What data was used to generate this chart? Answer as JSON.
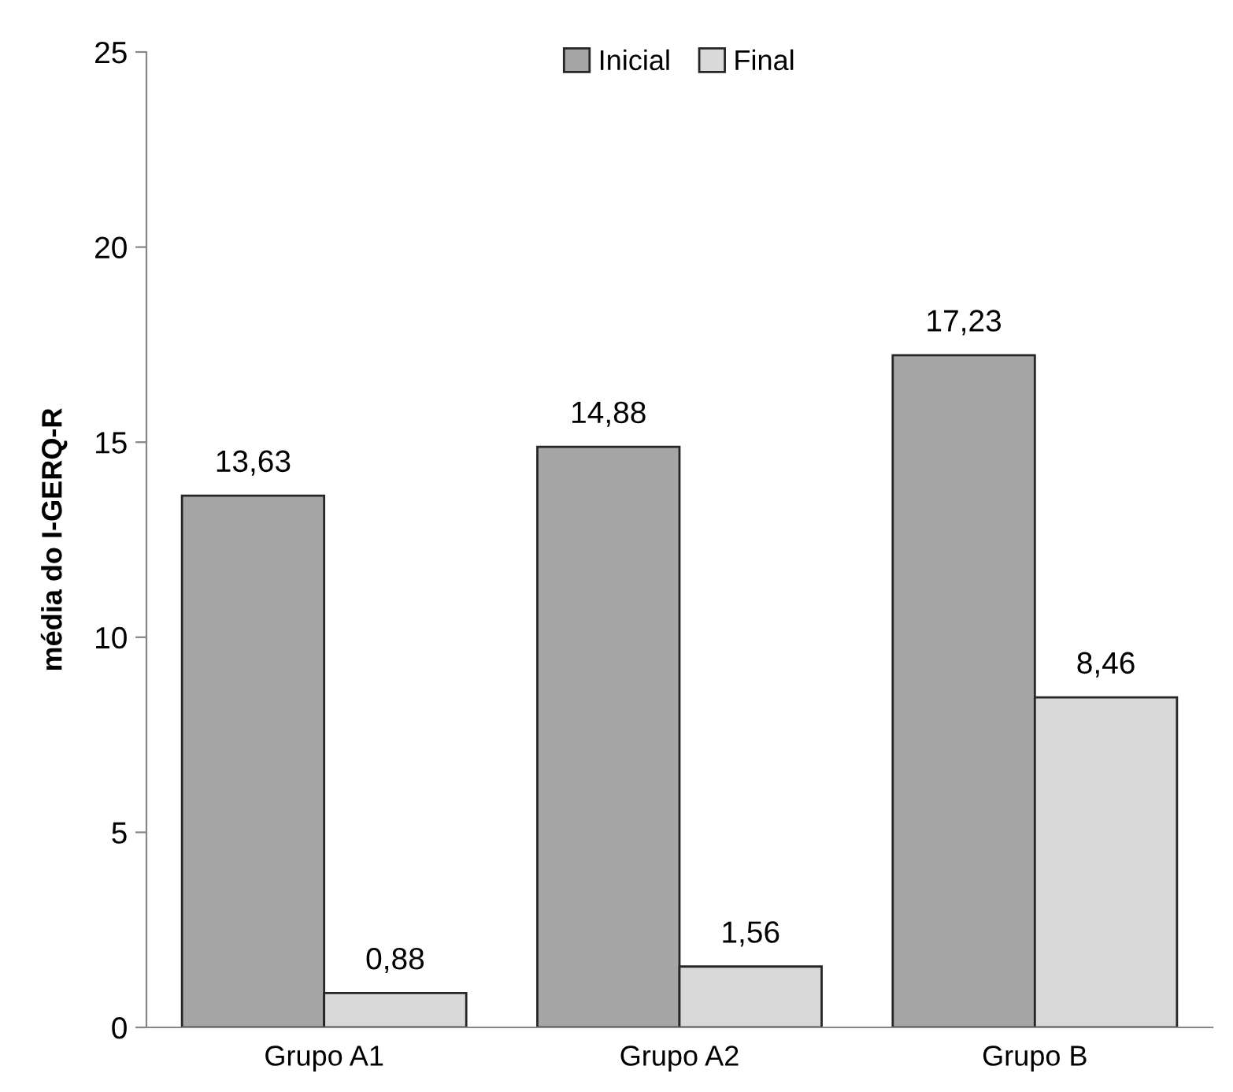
{
  "chart_data": {
    "type": "bar",
    "ylabel": "média do I-GERQ-R",
    "categories": [
      "Grupo A1",
      "Grupo A2",
      "Grupo B"
    ],
    "series": [
      {
        "name": "Inicial",
        "color": "#a6a6a6",
        "values": [
          13.63,
          14.88,
          17.23
        ],
        "value_labels": [
          "13,63",
          "14,88",
          "17,23"
        ]
      },
      {
        "name": "Final",
        "color": "#d9d9d9",
        "values": [
          0.88,
          1.56,
          8.46
        ],
        "value_labels": [
          "0,88",
          "1,56",
          "8,46"
        ]
      }
    ],
    "ylim": [
      0,
      25
    ],
    "yticks": [
      0,
      5,
      10,
      15,
      20,
      25
    ],
    "grid": false,
    "legend": "top"
  }
}
